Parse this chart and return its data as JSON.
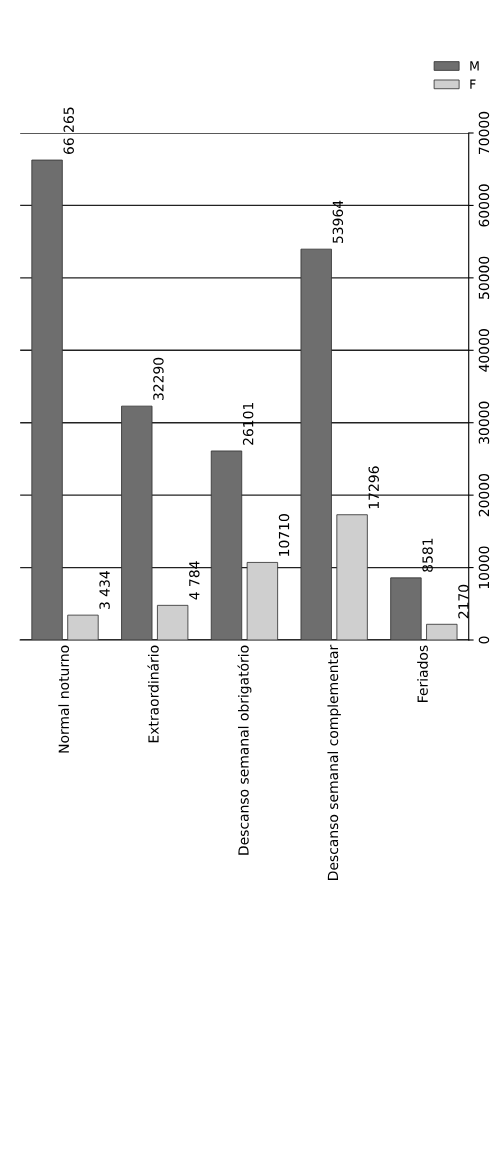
{
  "chart_data": {
    "type": "bar",
    "categories": [
      "Normal noturno",
      "Extraordinário",
      "Descanso semanal obrigatório",
      "Descanso semanal complementar",
      "Feriados"
    ],
    "series": [
      {
        "name": "M",
        "color": "#6e6e6e",
        "values": [
          66265,
          32290,
          26101,
          53964,
          8581
        ],
        "value_labels": [
          "66 265",
          "32290",
          "26101",
          "53964",
          "8581"
        ]
      },
      {
        "name": "F",
        "color": "#cfcfcf",
        "values": [
          3434,
          4784,
          10710,
          17296,
          2170
        ],
        "value_labels": [
          "3 434",
          "4 784",
          "10710",
          "17296",
          "2170"
        ]
      }
    ],
    "ylim": [
      0,
      70000
    ],
    "yticks": [
      0,
      10000,
      20000,
      30000,
      40000,
      50000,
      60000,
      70000
    ],
    "grid": "y",
    "legend": "top right"
  }
}
